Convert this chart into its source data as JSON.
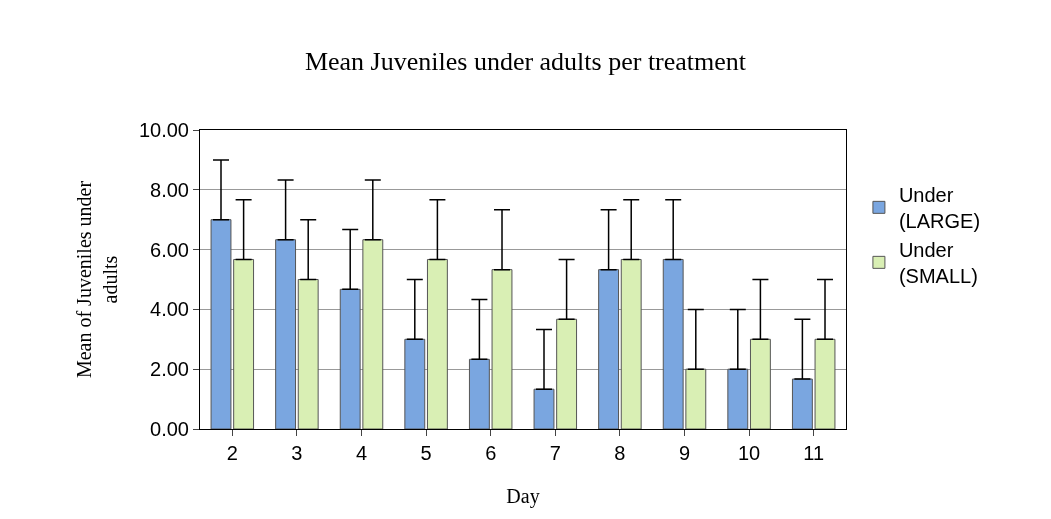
{
  "chart_data": {
    "type": "bar",
    "title": "Mean Juveniles under adults per treatment",
    "xlabel": "Day",
    "ylabel": "Mean of Juveniles under adults",
    "categories": [
      "2",
      "3",
      "4",
      "5",
      "6",
      "7",
      "8",
      "9",
      "10",
      "11"
    ],
    "series": [
      {
        "name": "Under (LARGE)",
        "color": "#7aa6e0",
        "values": [
          7.0,
          6.33,
          4.67,
          3.0,
          2.33,
          1.33,
          5.33,
          5.67,
          2.0,
          1.67
        ],
        "errors": [
          [
            7.0,
            9.0
          ],
          [
            6.33,
            8.33
          ],
          [
            4.67,
            6.67
          ],
          [
            3.0,
            5.0
          ],
          [
            2.33,
            4.33
          ],
          [
            1.33,
            3.33
          ],
          [
            5.33,
            7.33
          ],
          [
            5.67,
            7.67
          ],
          [
            2.0,
            4.0
          ],
          [
            1.67,
            3.67
          ]
        ]
      },
      {
        "name": "Under (SMALL)",
        "color": "#d9efb4",
        "values": [
          5.67,
          5.0,
          6.33,
          5.67,
          5.33,
          3.67,
          5.67,
          2.0,
          3.0,
          3.0
        ],
        "errors": [
          [
            5.67,
            7.67
          ],
          [
            5.0,
            7.0
          ],
          [
            6.33,
            8.33
          ],
          [
            5.67,
            7.67
          ],
          [
            5.33,
            7.33
          ],
          [
            3.67,
            5.67
          ],
          [
            5.67,
            7.67
          ],
          [
            2.0,
            4.0
          ],
          [
            3.0,
            5.0
          ],
          [
            3.0,
            5.0
          ]
        ]
      }
    ],
    "ylim": [
      0,
      10
    ],
    "yticks": [
      {
        "value": 0,
        "label": "0.00"
      },
      {
        "value": 2,
        "label": "2.00"
      },
      {
        "value": 4,
        "label": "4.00"
      },
      {
        "value": 6,
        "label": "6.00"
      },
      {
        "value": 8,
        "label": "8.00"
      },
      {
        "value": 10,
        "label": "10.00"
      }
    ],
    "grid": "y",
    "legend": "right"
  }
}
